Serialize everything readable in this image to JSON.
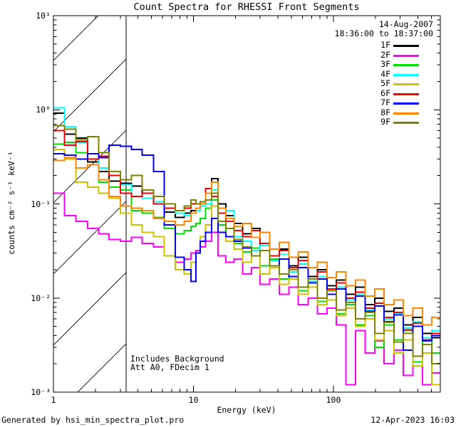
{
  "title": "Count Spectra for RHESSI Front Segments",
  "header": {
    "date": "14-Aug-2007",
    "interval": "18:36:00 to 18:37:00"
  },
  "annotations": {
    "0": "Includes Background",
    "1": "Att A0, FDecim 1"
  },
  "footer": {
    "left": "Generated by hsi_min_spectra_plot.pro",
    "right": "12-Apr-2023 16:03"
  },
  "chart_data": {
    "type": "line",
    "style": "histogram-step",
    "title": "Count Spectra for RHESSI Front Segments",
    "xlabel": "Energy (keV)",
    "ylabel": "counts cm⁻² s⁻¹ keV⁻¹",
    "xscale": "log",
    "yscale": "log",
    "xlim": [
      1,
      580
    ],
    "ylim": [
      0.001,
      10
    ],
    "grid": false,
    "legend_position": "top-right",
    "xticks": {
      "major": [
        1,
        10,
        100
      ],
      "labels": [
        "1",
        "10",
        "100"
      ]
    },
    "yticks": {
      "major": [
        10,
        1,
        0.1,
        0.01,
        0.001
      ],
      "labels": [
        "10¹",
        "10⁰",
        "10⁻¹",
        "10⁻²",
        "10⁻³"
      ]
    },
    "hatch_region": {
      "from_energy": 1.0,
      "to_energy": 3.3,
      "style": "diagonal-45deg-hatch",
      "color": "#000000"
    },
    "energy_bins_keV": [
      1.0,
      1.2,
      1.45,
      1.75,
      2.1,
      2.5,
      3.0,
      3.6,
      4.3,
      5.2,
      6.2,
      7.4,
      8.6,
      9.6,
      10.4,
      11.2,
      12.2,
      13.5,
      15,
      17,
      19.5,
      22.5,
      26,
      30,
      35,
      41,
      48,
      56,
      66,
      77,
      90,
      105,
      123,
      144,
      168,
      197,
      230,
      270,
      315,
      370,
      432,
      505
    ],
    "series": [
      {
        "name": "1F",
        "color": "#000000",
        "values": [
          0.92,
          0.55,
          0.5,
          0.28,
          0.22,
          0.175,
          0.165,
          0.155,
          0.115,
          0.1,
          0.082,
          0.072,
          0.08,
          0.085,
          0.09,
          0.095,
          0.13,
          0.185,
          0.1,
          0.075,
          0.062,
          0.048,
          0.055,
          0.036,
          0.028,
          0.033,
          0.022,
          0.027,
          0.017,
          0.02,
          0.0135,
          0.0155,
          0.011,
          0.013,
          0.0085,
          0.01,
          0.0072,
          0.0078,
          0.0052,
          0.0062,
          0.0042,
          0.0038
        ]
      },
      {
        "name": "2F",
        "color": "#ff00ff",
        "values": [
          0.13,
          0.075,
          0.065,
          0.055,
          0.048,
          0.042,
          0.04,
          0.044,
          0.038,
          0.035,
          0.028,
          0.024,
          0.026,
          0.03,
          0.032,
          0.035,
          0.04,
          0.05,
          0.028,
          0.024,
          0.026,
          0.018,
          0.021,
          0.014,
          0.016,
          0.011,
          0.013,
          0.0085,
          0.01,
          0.0068,
          0.0078,
          0.0052,
          0.0012,
          0.0045,
          0.0026,
          0.0035,
          0.002,
          0.0028,
          0.0015,
          0.0021,
          0.0012,
          0.0016
        ]
      },
      {
        "name": "3F",
        "color": "#00e000",
        "values": [
          0.43,
          0.45,
          0.35,
          0.3,
          0.17,
          0.15,
          0.14,
          0.085,
          0.08,
          0.072,
          0.055,
          0.048,
          0.052,
          0.058,
          0.062,
          0.07,
          0.09,
          0.11,
          0.06,
          0.045,
          0.038,
          0.031,
          0.034,
          0.022,
          0.026,
          0.016,
          0.019,
          0.012,
          0.015,
          0.0092,
          0.011,
          0.0068,
          0.0085,
          0.0052,
          0.0065,
          0.003,
          0.0052,
          0.0036,
          0.0045,
          0.0021,
          0.0035,
          0.0026
        ]
      },
      {
        "name": "4F",
        "color": "#00ffff",
        "values": [
          1.05,
          0.66,
          0.45,
          0.3,
          0.24,
          0.2,
          0.16,
          0.12,
          0.115,
          0.105,
          0.09,
          0.08,
          0.075,
          0.08,
          0.085,
          0.095,
          0.1,
          0.14,
          0.08,
          0.085,
          0.045,
          0.04,
          0.032,
          0.036,
          0.025,
          0.029,
          0.019,
          0.023,
          0.015,
          0.017,
          0.012,
          0.013,
          0.0095,
          0.011,
          0.0075,
          0.0088,
          0.006,
          0.0068,
          0.0048,
          0.0056,
          0.0038,
          0.0045
        ]
      },
      {
        "name": "5F",
        "color": "#cfc000",
        "values": [
          0.38,
          0.3,
          0.17,
          0.15,
          0.13,
          0.115,
          0.08,
          0.06,
          0.05,
          0.045,
          0.028,
          0.02,
          0.018,
          0.024,
          0.03,
          0.045,
          0.06,
          0.095,
          0.05,
          0.04,
          0.033,
          0.024,
          0.028,
          0.018,
          0.021,
          0.014,
          0.016,
          0.011,
          0.013,
          0.0085,
          0.0095,
          0.0065,
          0.0078,
          0.005,
          0.006,
          0.0036,
          0.0045,
          0.0026,
          0.0036,
          0.0019,
          0.0026,
          0.0012
        ]
      },
      {
        "name": "6F",
        "color": "#f00000",
        "values": [
          0.6,
          0.42,
          0.46,
          0.3,
          0.32,
          0.2,
          0.13,
          0.12,
          0.13,
          0.1,
          0.09,
          0.085,
          0.09,
          0.1,
          0.1,
          0.105,
          0.145,
          0.12,
          0.08,
          0.065,
          0.052,
          0.045,
          0.052,
          0.038,
          0.028,
          0.032,
          0.021,
          0.025,
          0.016,
          0.019,
          0.0125,
          0.0145,
          0.01,
          0.0115,
          0.0078,
          0.0088,
          0.0062,
          0.007,
          0.0046,
          0.0054,
          0.0036,
          0.0042
        ]
      },
      {
        "name": "7F",
        "color": "#0000ff",
        "values": [
          0.34,
          0.33,
          0.3,
          0.34,
          0.31,
          0.42,
          0.41,
          0.38,
          0.33,
          0.22,
          0.06,
          0.027,
          0.02,
          0.015,
          0.03,
          0.04,
          0.05,
          0.07,
          0.05,
          0.045,
          0.04,
          0.034,
          0.028,
          0.032,
          0.022,
          0.026,
          0.017,
          0.021,
          0.0145,
          0.016,
          0.011,
          0.0125,
          0.009,
          0.0105,
          0.0072,
          0.0082,
          0.0056,
          0.0066,
          0.0028,
          0.005,
          0.0035,
          0.004
        ]
      },
      {
        "name": "8F",
        "color": "#ff8400",
        "values": [
          0.29,
          0.31,
          0.24,
          0.26,
          0.18,
          0.12,
          0.095,
          0.09,
          0.085,
          0.07,
          0.065,
          0.06,
          0.065,
          0.08,
          0.09,
          0.1,
          0.13,
          0.17,
          0.09,
          0.07,
          0.058,
          0.062,
          0.044,
          0.05,
          0.033,
          0.039,
          0.027,
          0.031,
          0.021,
          0.024,
          0.0165,
          0.019,
          0.0135,
          0.0155,
          0.0105,
          0.0125,
          0.0085,
          0.0095,
          0.0065,
          0.0078,
          0.0052,
          0.0062
        ]
      },
      {
        "name": "9F",
        "color": "#7f7f00",
        "values": [
          0.68,
          0.62,
          0.48,
          0.52,
          0.35,
          0.22,
          0.18,
          0.2,
          0.14,
          0.12,
          0.1,
          0.085,
          0.095,
          0.11,
          0.1,
          0.105,
          0.11,
          0.13,
          0.065,
          0.055,
          0.042,
          0.035,
          0.028,
          0.032,
          0.022,
          0.018,
          0.02,
          0.013,
          0.016,
          0.01,
          0.012,
          0.0075,
          0.009,
          0.006,
          0.007,
          0.0042,
          0.0055,
          0.0034,
          0.0042,
          0.0024,
          0.0032,
          0.002
        ]
      }
    ]
  }
}
